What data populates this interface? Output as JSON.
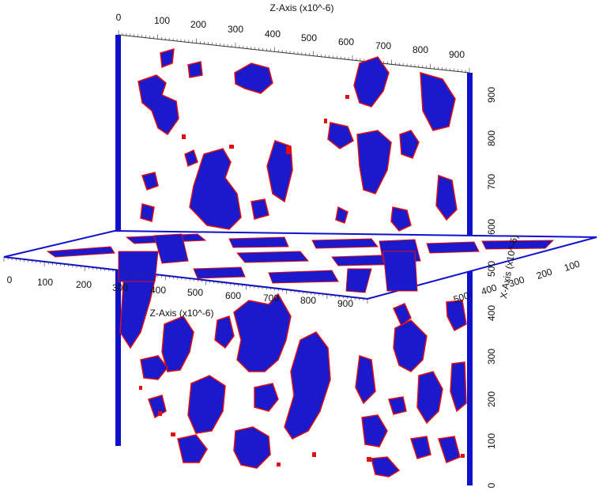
{
  "figure": {
    "kind": "3D orthogonal slice view of a segmented volume",
    "colors": {
      "phase_fill": "#1a1acc",
      "phase_edge": "#e01010",
      "frame": "#1111cc",
      "background": "#ffffff"
    }
  },
  "axes": {
    "z_top": {
      "title": "Z-Axis (x10^-6)",
      "ticks": [
        "0",
        "100",
        "200",
        "300",
        "400",
        "500",
        "600",
        "700",
        "800",
        "900"
      ]
    },
    "y_right": {
      "ticks": [
        "0",
        "100",
        "200",
        "300",
        "400",
        "500",
        "600",
        "700",
        "800",
        "900"
      ]
    },
    "z_mid": {
      "title": "Z-Axis (x10^-6)",
      "ticks": [
        "0",
        "100",
        "200",
        "300",
        "400",
        "500",
        "600",
        "700",
        "800",
        "900"
      ]
    },
    "x_right": {
      "title": "X-Axis (x10^-6)",
      "ticks": [
        "100",
        "200",
        "300",
        "400",
        "500"
      ]
    }
  }
}
